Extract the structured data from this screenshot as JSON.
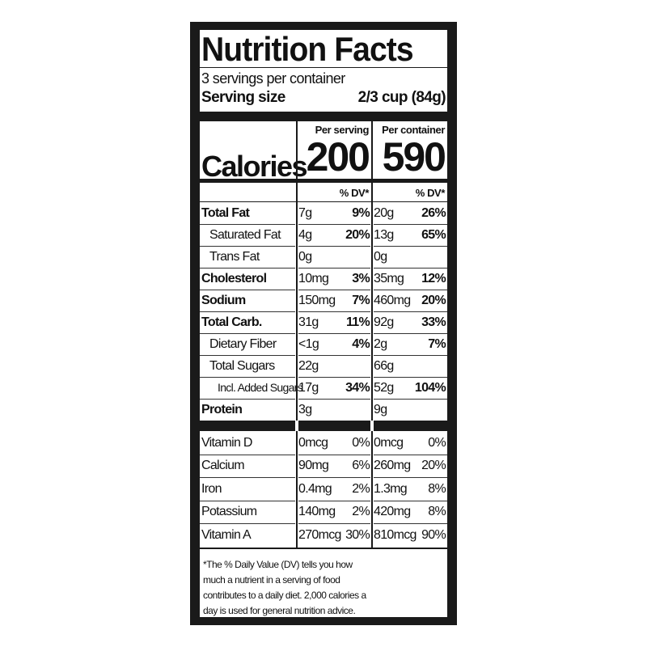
{
  "title": "Nutrition Facts",
  "servings_per_container": "3 servings per container",
  "serving_size": {
    "label": "Serving size",
    "value": "2/3 cup (84g)"
  },
  "calories": {
    "label": "Calories",
    "per_serving_header": "Per serving",
    "per_container_header": "Per container",
    "per_serving": "200",
    "per_container": "590"
  },
  "dv_header": "% DV*",
  "nutrients": [
    {
      "name": "Total Fat",
      "bold": true,
      "indent": 0,
      "serving": "7g",
      "serving_dv": "9%",
      "container": "20g",
      "container_dv": "26%"
    },
    {
      "name": "Saturated Fat",
      "bold": false,
      "indent": 1,
      "serving": "4g",
      "serving_dv": "20%",
      "container": "13g",
      "container_dv": "65%"
    },
    {
      "name": "Trans Fat",
      "bold": false,
      "indent": 1,
      "serving": "0g",
      "serving_dv": "",
      "container": "0g",
      "container_dv": ""
    },
    {
      "name": "Cholesterol",
      "bold": true,
      "indent": 0,
      "serving": "10mg",
      "serving_dv": "3%",
      "container": "35mg",
      "container_dv": "12%"
    },
    {
      "name": "Sodium",
      "bold": true,
      "indent": 0,
      "serving": "150mg",
      "serving_dv": "7%",
      "container": "460mg",
      "container_dv": "20%"
    },
    {
      "name": "Total Carb.",
      "bold": true,
      "indent": 0,
      "serving": "31g",
      "serving_dv": "11%",
      "container": "92g",
      "container_dv": "33%"
    },
    {
      "name": "Dietary Fiber",
      "bold": false,
      "indent": 1,
      "serving": "<1g",
      "serving_dv": "4%",
      "container": "2g",
      "container_dv": "7%"
    },
    {
      "name": "Total Sugars",
      "bold": false,
      "indent": 1,
      "serving": "22g",
      "serving_dv": "",
      "container": "66g",
      "container_dv": ""
    },
    {
      "name": "Incl. Added Sugars",
      "bold": false,
      "indent": 2,
      "serving": "17g",
      "serving_dv": "34%",
      "container": "52g",
      "container_dv": "104%"
    },
    {
      "name": "Protein",
      "bold": true,
      "indent": 0,
      "serving": "3g",
      "serving_dv": "",
      "container": "9g",
      "container_dv": ""
    }
  ],
  "vitamins": [
    {
      "name": "Vitamin D",
      "serving": "0mcg",
      "serving_dv": "0%",
      "container": "0mcg",
      "container_dv": "0%"
    },
    {
      "name": "Calcium",
      "serving": "90mg",
      "serving_dv": "6%",
      "container": "260mg",
      "container_dv": "20%"
    },
    {
      "name": "Iron",
      "serving": "0.4mg",
      "serving_dv": "2%",
      "container": "1.3mg",
      "container_dv": "8%"
    },
    {
      "name": "Potassium",
      "serving": "140mg",
      "serving_dv": "2%",
      "container": "420mg",
      "container_dv": "8%"
    },
    {
      "name": "Vitamin A",
      "serving": "270mcg",
      "serving_dv": "30%",
      "container": "810mcg",
      "container_dv": "90%"
    }
  ],
  "footnote": "*The % Daily Value (DV) tells you how much a nutrient in a serving of food contributes to a daily diet. 2,000 calories a day is used for general nutrition advice."
}
